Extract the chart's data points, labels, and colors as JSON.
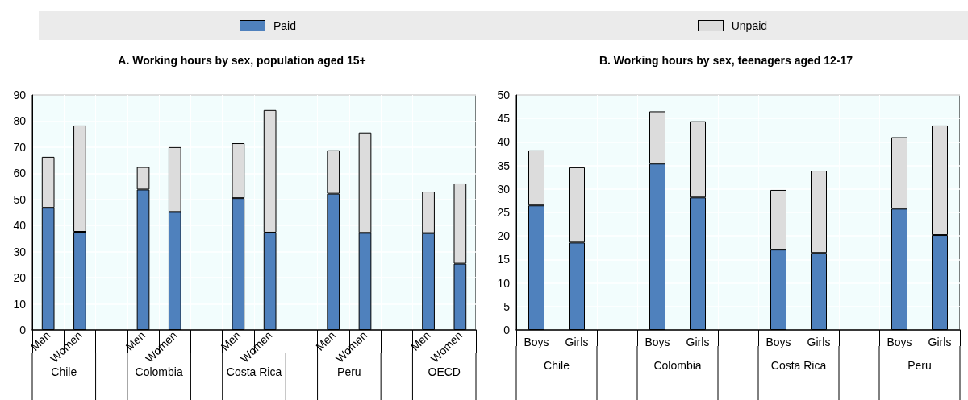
{
  "chart_data": [
    {
      "type": "bar",
      "title": "A. Working hours by sex, population aged 15+",
      "categories": [
        "Men",
        "Women",
        null,
        "Men",
        "Women",
        null,
        "Men",
        "Women",
        null,
        "Men",
        "Women",
        null,
        "Men",
        "Women"
      ],
      "stacked": true,
      "legend": "top",
      "grid": true,
      "ylim": [
        0,
        90
      ],
      "yticks": [
        0,
        10,
        20,
        30,
        40,
        50,
        60,
        70,
        80,
        90
      ],
      "annotations": [
        "Chile",
        "Colombia",
        "Costa Rica",
        "Peru",
        "OECD"
      ],
      "series": [
        {
          "name": "Paid",
          "color": "#4f81bd",
          "values": [
            46.8,
            37.6,
            null,
            53.8,
            45.2,
            null,
            50.5,
            37.3,
            null,
            52.2,
            37.2,
            null,
            37.1,
            25.4
          ]
        },
        {
          "name": "Unpaid",
          "color": "#dcdcdc",
          "values": [
            19.5,
            40.7,
            null,
            8.6,
            24.8,
            null,
            21.0,
            46.9,
            null,
            16.6,
            38.4,
            null,
            15.9,
            30.7
          ]
        }
      ]
    },
    {
      "type": "bar",
      "title": "B. Working hours by sex, teenagers aged 12-17",
      "categories": [
        "Boys",
        "Girls",
        null,
        "Boys",
        "Girls",
        null,
        "Boys",
        "Girls",
        null,
        "Boys",
        "Girls"
      ],
      "stacked": true,
      "grid": true,
      "ylim": [
        0,
        50
      ],
      "yticks": [
        0,
        5,
        10,
        15,
        20,
        25,
        30,
        35,
        40,
        45,
        50
      ],
      "annotations": [
        "Chile",
        "Colombia",
        "Costa Rica",
        "Peru"
      ],
      "series": [
        {
          "color": "#4f81bd",
          "values": [
            26.5,
            18.6,
            null,
            35.4,
            28.2,
            null,
            17.1,
            16.4,
            null,
            25.8,
            20.2
          ]
        },
        {
          "color": "#dcdcdc",
          "values": [
            11.7,
            16.0,
            null,
            11.1,
            16.2,
            null,
            12.7,
            17.5,
            null,
            15.2,
            23.3
          ]
        }
      ]
    }
  ]
}
